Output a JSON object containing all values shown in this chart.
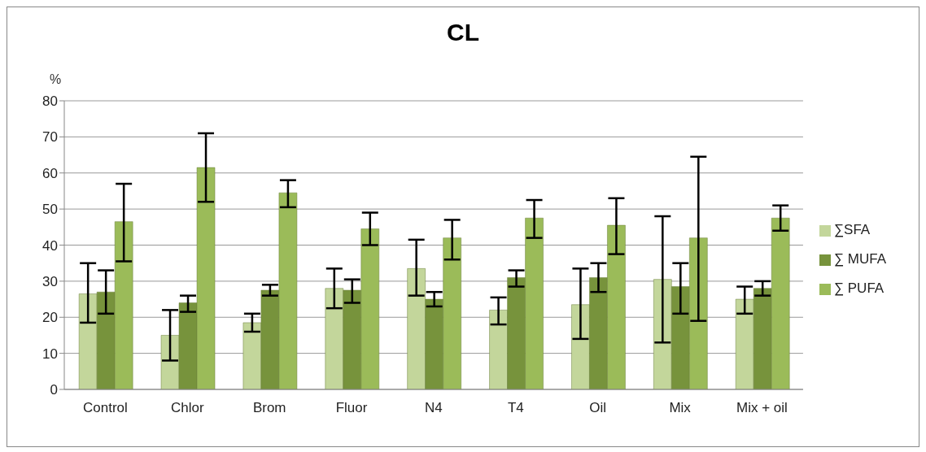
{
  "chart_data": {
    "type": "bar",
    "title": "CL",
    "ylabel": "%",
    "categories": [
      "Control",
      "Chlor",
      "Brom",
      "Fluor",
      "N4",
      "T4",
      "Oil",
      "Mix",
      "Mix + oil"
    ],
    "series": [
      {
        "name": "∑SFA",
        "color": "#c3d69b",
        "values": [
          26.5,
          15,
          18.5,
          28,
          33.5,
          22,
          23.5,
          30.5,
          25
        ],
        "errors": [
          [
            18.5,
            35
          ],
          [
            8,
            22
          ],
          [
            16,
            21
          ],
          [
            22.5,
            33.5
          ],
          [
            26,
            41.5
          ],
          [
            18,
            25.5
          ],
          [
            14,
            33.5
          ],
          [
            13,
            48
          ],
          [
            21,
            28.5
          ]
        ]
      },
      {
        "name": "∑ MUFA",
        "color": "#77933c",
        "values": [
          27,
          24,
          27.5,
          27.5,
          25,
          31,
          31,
          28.5,
          28
        ],
        "errors": [
          [
            21,
            33
          ],
          [
            21.5,
            26
          ],
          [
            26,
            29
          ],
          [
            24,
            30.5
          ],
          [
            23,
            27
          ],
          [
            28.5,
            33
          ],
          [
            27,
            35
          ],
          [
            21,
            35
          ],
          [
            26,
            30
          ]
        ]
      },
      {
        "name": "∑ PUFA",
        "color": "#9bbb59",
        "values": [
          46.5,
          61.5,
          54.5,
          44.5,
          42,
          47.5,
          45.5,
          42,
          47.5
        ],
        "errors": [
          [
            35.5,
            57
          ],
          [
            52,
            71
          ],
          [
            50.5,
            58
          ],
          [
            40,
            49
          ],
          [
            36,
            47
          ],
          [
            42,
            52.5
          ],
          [
            37.5,
            53
          ],
          [
            19,
            64.5
          ],
          [
            44,
            51
          ]
        ]
      }
    ],
    "ylim": [
      0,
      80
    ],
    "yticks": [
      0,
      10,
      20,
      30,
      40,
      50,
      60,
      70,
      80
    ],
    "grid": "y",
    "legend": "right"
  }
}
